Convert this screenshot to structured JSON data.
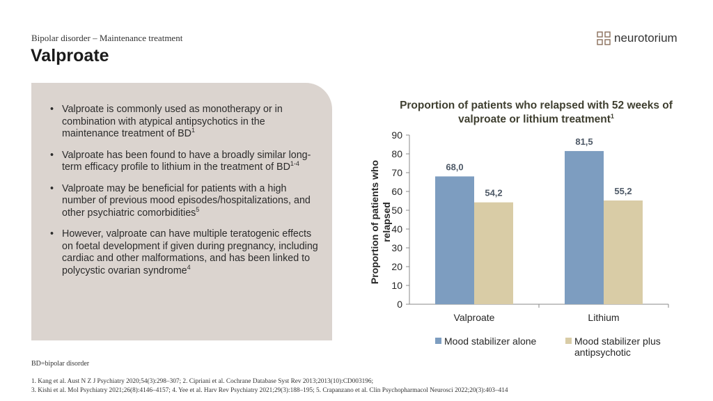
{
  "header": {
    "subtitle": "Bipolar disorder – Maintenance treatment",
    "title": "Valproate",
    "logo": "neurotorium"
  },
  "bullets": [
    {
      "text": "Valproate is commonly used as monotherapy or in combination with atypical antipsychotics in the maintenance treatment of BD",
      "sup": "1"
    },
    {
      "text": "Valproate has been found to have a broadly similar long-term efficacy profile to lithium in the treatment of BD",
      "sup": "1-4"
    },
    {
      "text": "Valproate may be beneficial for patients with a high number of previous mood episodes/hospitalizations, and other psychiatric comorbidities",
      "sup": "5"
    },
    {
      "text": "However, valproate can have multiple teratogenic effects on foetal development if given during pregnancy, including cardiac and other malformations, and has been linked to polycystic ovarian syndrome",
      "sup": "4"
    }
  ],
  "chart_data": {
    "type": "bar",
    "title": "Proportion of patients who relapsed with 52 weeks of valproate or lithium treatment",
    "title_sup": "1",
    "ylabel": "Proportion of patients who relapsed",
    "categories": [
      "Valproate",
      "Lithium"
    ],
    "series": [
      {
        "name": "Mood stabilizer alone",
        "color": "#7d9dc0",
        "values": [
          68.0,
          81.5
        ],
        "value_labels": [
          "68,0",
          "81,5"
        ]
      },
      {
        "name": "Mood stabilizer plus antipsychotic",
        "color": "#d9cca6",
        "values": [
          54.2,
          55.2
        ],
        "value_labels": [
          "54,2",
          "55,2"
        ]
      }
    ],
    "ylim": [
      0,
      90
    ],
    "yticks": [
      0,
      10,
      20,
      30,
      40,
      50,
      60,
      70,
      80,
      90
    ],
    "grid": false,
    "legend": "bottom"
  },
  "abbreviation": "BD=bipolar disorder",
  "references": [
    "1. Kang et al. Aust N Z J Psychiatry 2020;54(3):298–307;  2. Cipriani et al. Cochrane Database Syst Rev 2013;2013(10):CD003196;",
    "3. Kishi et al. Mol Psychiatry 2021;26(8):4146–4157;  4. Yee et al. Harv Rev Psychiatry 2021;29(3):188–195;  5. Crapanzano et al. Clin Psychopharmacol Neurosci 2022;20(3):403–414"
  ]
}
